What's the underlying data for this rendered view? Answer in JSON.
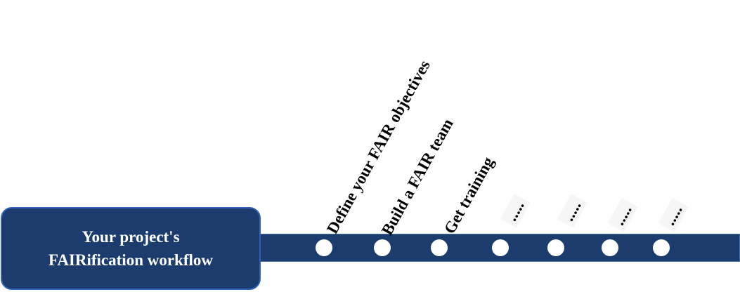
{
  "title": {
    "line1": "Your project's",
    "line2": "FAIRification workflow"
  },
  "steps": [
    {
      "label": "Define your FAIR objectives"
    },
    {
      "label": "Build a FAIR team"
    },
    {
      "label": "Get training"
    },
    {
      "label": "....."
    },
    {
      "label": "....."
    },
    {
      "label": "....."
    },
    {
      "label": "....."
    }
  ],
  "colors": {
    "bar": "#1d3c6e",
    "title_border": "#2f62b8",
    "node_fill": "#ffffff",
    "text": "#000000"
  }
}
